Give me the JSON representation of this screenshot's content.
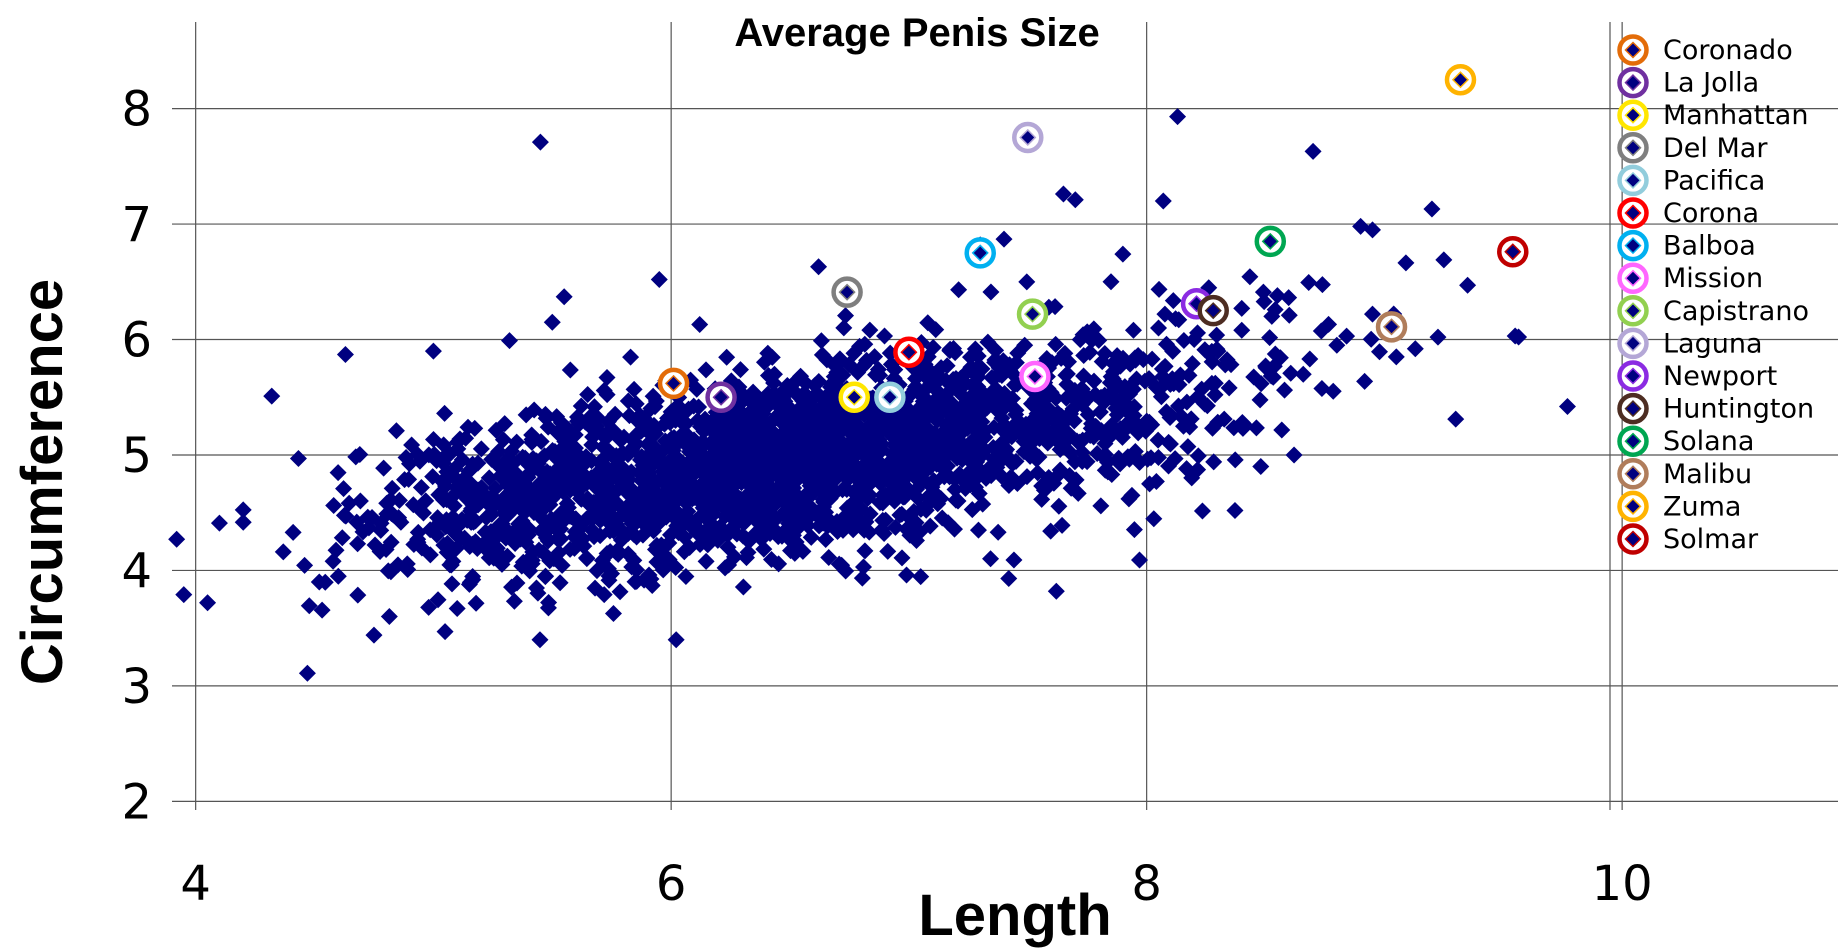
{
  "chart_data": {
    "type": "scatter",
    "title": "Average Penis Size",
    "xlabel": "Length",
    "ylabel": "Circumference",
    "xlim": [
      3.85,
      10.95
    ],
    "ylim": [
      1.7,
      8.75
    ],
    "xticks": [
      4,
      6,
      8,
      10
    ],
    "yticks": [
      2,
      3,
      4,
      5,
      6,
      7,
      8
    ],
    "grid": true,
    "legend_position": "top-right",
    "marker_color": "#000080",
    "background_series": {
      "marker": "diamond",
      "cloud_clusters": [
        {
          "cx": 6.3,
          "cy": 4.9,
          "sx": 0.55,
          "sy": 0.38,
          "n": 1500
        },
        {
          "cx": 7.3,
          "cy": 5.25,
          "sx": 0.5,
          "sy": 0.4,
          "n": 650
        },
        {
          "cx": 5.3,
          "cy": 4.55,
          "sx": 0.4,
          "sy": 0.4,
          "n": 280
        },
        {
          "cx": 8.2,
          "cy": 5.6,
          "sx": 0.45,
          "sy": 0.45,
          "n": 90
        }
      ],
      "outliers": [
        [
          3.92,
          4.27
        ],
        [
          3.95,
          3.79
        ],
        [
          4.05,
          3.72
        ],
        [
          4.1,
          4.41
        ],
        [
          4.47,
          3.11
        ],
        [
          4.32,
          5.51
        ],
        [
          4.63,
          5.87
        ],
        [
          4.75,
          3.44
        ],
        [
          5.45,
          7.71
        ],
        [
          5.0,
          5.9
        ],
        [
          4.41,
          4.33
        ],
        [
          4.52,
          3.9
        ],
        [
          4.6,
          3.95
        ],
        [
          5.32,
          5.99
        ],
        [
          5.95,
          6.52
        ],
        [
          6.12,
          6.13
        ],
        [
          6.62,
          6.63
        ],
        [
          7.65,
          7.26
        ],
        [
          7.7,
          7.21
        ],
        [
          8.13,
          7.93
        ],
        [
          8.07,
          7.2
        ],
        [
          7.4,
          6.87
        ],
        [
          7.3,
          6.82
        ],
        [
          7.9,
          6.74
        ],
        [
          8.4,
          6.27
        ],
        [
          8.55,
          6.38
        ],
        [
          8.7,
          7.63
        ],
        [
          8.9,
          6.98
        ],
        [
          8.95,
          6.95
        ],
        [
          9.2,
          7.13
        ],
        [
          9.25,
          6.69
        ],
        [
          9.35,
          6.47
        ],
        [
          9.55,
          6.03
        ],
        [
          9.77,
          5.42
        ],
        [
          9.3,
          5.31
        ],
        [
          9.13,
          5.92
        ],
        [
          9.05,
          5.85
        ],
        [
          8.95,
          6.22
        ],
        [
          8.62,
          5.0
        ],
        [
          8.48,
          4.9
        ],
        [
          7.97,
          4.09
        ],
        [
          7.62,
          3.82
        ],
        [
          7.42,
          3.93
        ],
        [
          6.99,
          3.96
        ],
        [
          5.1,
          3.67
        ],
        [
          4.98,
          3.68
        ],
        [
          5.55,
          6.37
        ],
        [
          5.5,
          6.15
        ],
        [
          8.3,
          5.9
        ],
        [
          8.8,
          5.95
        ],
        [
          7.85,
          6.5
        ],
        [
          8.05,
          6.1
        ],
        [
          8.4,
          6.08
        ],
        [
          8.6,
          6.21
        ],
        [
          8.2,
          6.0
        ]
      ]
    },
    "series": [
      {
        "name": "Coronado",
        "x": 6.01,
        "y": 5.62,
        "color": "#E36C09"
      },
      {
        "name": "La Jolla",
        "x": 6.21,
        "y": 5.5,
        "color": "#7030A0"
      },
      {
        "name": "Manhattan",
        "x": 6.77,
        "y": 5.5,
        "color": "#FFE600"
      },
      {
        "name": "Del Mar",
        "x": 6.74,
        "y": 6.41,
        "color": "#7F7F7F"
      },
      {
        "name": "Pacifica",
        "x": 6.92,
        "y": 5.5,
        "color": "#92CDDC"
      },
      {
        "name": "Corona",
        "x": 7.0,
        "y": 5.89,
        "color": "#FF0000"
      },
      {
        "name": "Balboa",
        "x": 7.3,
        "y": 6.75,
        "color": "#00B0F0"
      },
      {
        "name": "Mission",
        "x": 7.53,
        "y": 5.68,
        "color": "#FF66FF"
      },
      {
        "name": "Capistrano",
        "x": 7.52,
        "y": 6.22,
        "color": "#92D050"
      },
      {
        "name": "Laguna",
        "x": 7.5,
        "y": 7.75,
        "color": "#B4A7D6"
      },
      {
        "name": "Newport",
        "x": 8.21,
        "y": 6.31,
        "color": "#8B2BE2"
      },
      {
        "name": "Huntington",
        "x": 8.28,
        "y": 6.25,
        "color": "#4D2D22"
      },
      {
        "name": "Solana",
        "x": 8.52,
        "y": 6.85,
        "color": "#00A651"
      },
      {
        "name": "Malibu",
        "x": 9.03,
        "y": 6.11,
        "color": "#B07D5B"
      },
      {
        "name": "Zuma",
        "x": 9.32,
        "y": 8.25,
        "color": "#FFB300"
      },
      {
        "name": "Solmar",
        "x": 9.54,
        "y": 6.76,
        "color": "#C00000"
      }
    ]
  }
}
